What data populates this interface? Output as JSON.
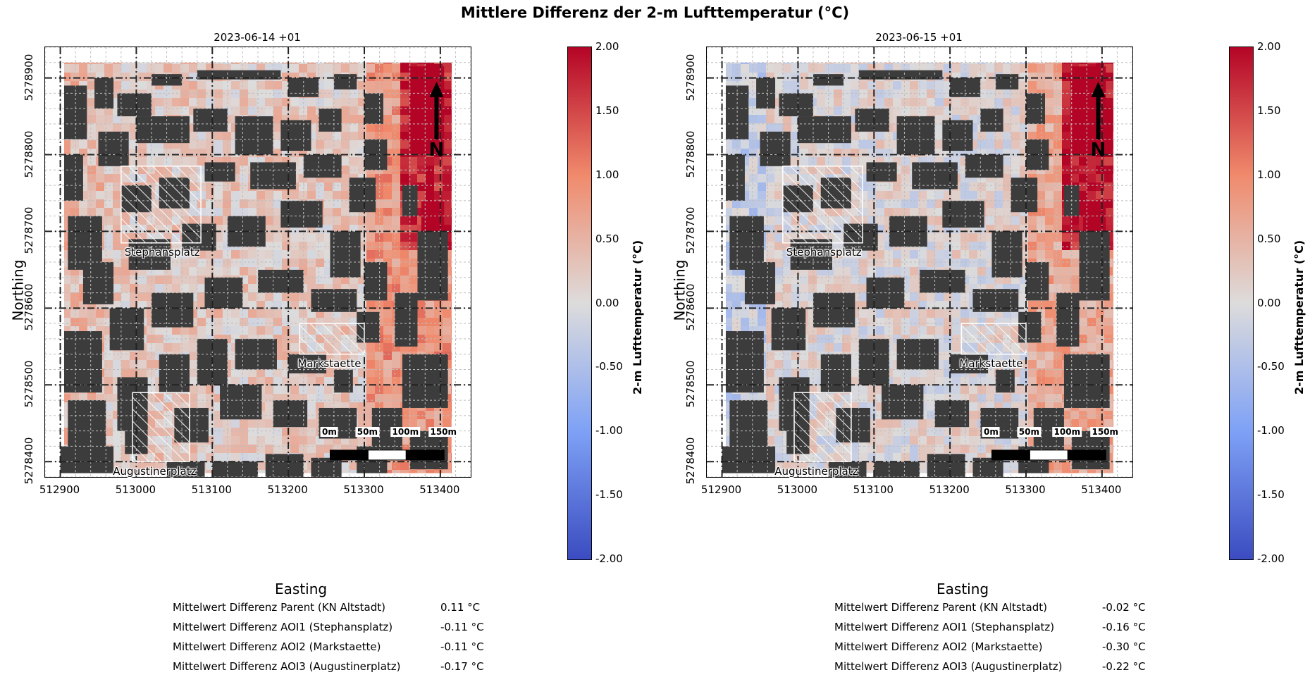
{
  "figure": {
    "title": "Mittlere Differenz der 2-m Lufttemperatur (°C)",
    "xlabel": "Easting",
    "ylabel": "Northing",
    "x_ticks": [
      "512900",
      "513000",
      "513100",
      "513200",
      "513300",
      "513400"
    ],
    "y_ticks": [
      "5278400",
      "5278500",
      "5278600",
      "5278700",
      "5278800",
      "5278900"
    ],
    "colorbar": {
      "label": "2-m Lufttemperatur (°C)",
      "ticks": [
        "2.00",
        "1.50",
        "1.00",
        "0.50",
        "0.00",
        "-0.50",
        "-1.00",
        "-1.50",
        "-2.00"
      ],
      "colormap": [
        "#b40426",
        "#f08a6c",
        "#dddcdc",
        "#7ea1f6",
        "#3b4cc0"
      ]
    },
    "north_label": "N",
    "scale_bar_labels": [
      "0m",
      "50m",
      "100m",
      "150m"
    ],
    "aoi_labels": [
      "Stephansplatz",
      "Markstaette",
      "Augustinerplatz"
    ],
    "building_color": "#3c3c3c"
  },
  "chart_data": [
    {
      "type": "heatmap",
      "title": "2023-06-14 +01",
      "xlabel": "Easting",
      "ylabel": "Northing",
      "xlim": [
        512880,
        513440
      ],
      "ylim": [
        5278380,
        5278940
      ],
      "clim": [
        -2.0,
        2.0
      ],
      "stats": [
        {
          "label": "Mittelwert Differenz Parent (KN Altstadt)",
          "value": "0.11 °C"
        },
        {
          "label": "Mittelwert Differenz AOI1 (Stephansplatz)",
          "value": "-0.11 °C"
        },
        {
          "label": "Mittelwert Differenz AOI2 (Markstaette)",
          "value": "-0.11 °C"
        },
        {
          "label": "Mittelwert Differenz AOI3 (Augustinerplatz)",
          "value": "-0.17 °C"
        }
      ]
    },
    {
      "type": "heatmap",
      "title": "2023-06-15 +01",
      "xlabel": "Easting",
      "ylabel": "Northing",
      "xlim": [
        512880,
        513440
      ],
      "ylim": [
        5278380,
        5278940
      ],
      "clim": [
        -2.0,
        2.0
      ],
      "stats": [
        {
          "label": "Mittelwert Differenz Parent (KN Altstadt)",
          "value": "-0.02 °C"
        },
        {
          "label": "Mittelwert Differenz AOI1 (Stephansplatz)",
          "value": "-0.16 °C"
        },
        {
          "label": "Mittelwert Differenz AOI2 (Markstaette)",
          "value": "-0.30 °C"
        },
        {
          "label": "Mittelwert Differenz AOI3 (Augustinerplatz)",
          "value": "-0.22 °C"
        }
      ]
    }
  ]
}
